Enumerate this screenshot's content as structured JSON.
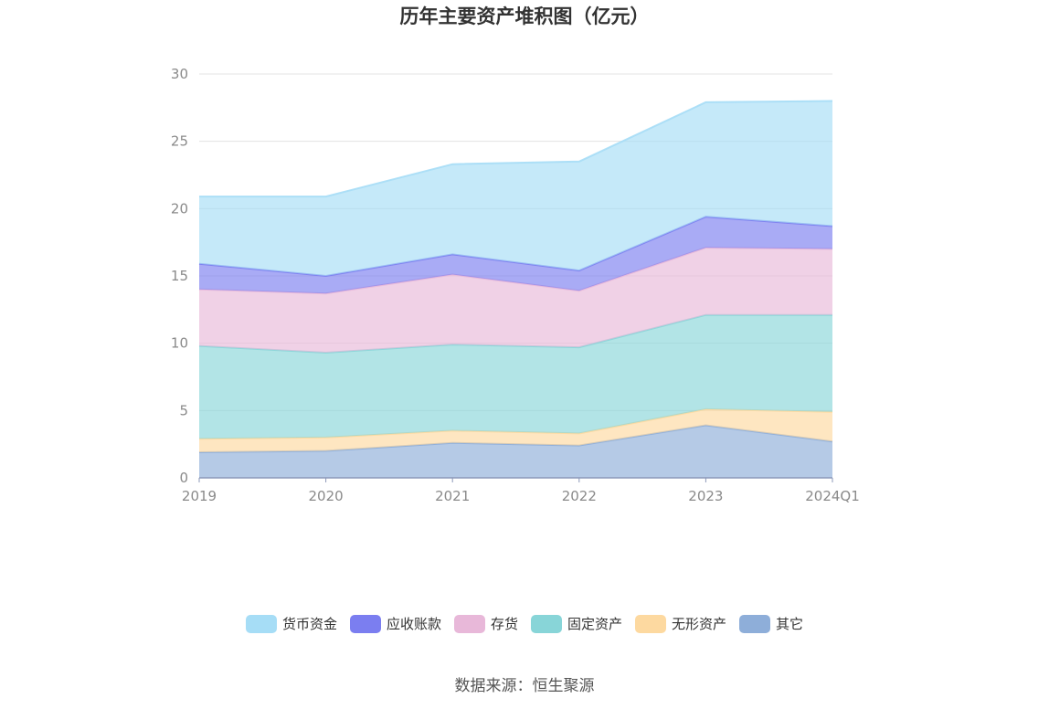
{
  "chart_data": {
    "type": "area",
    "stacked": true,
    "title": "历年主要资产堆积图（亿元）",
    "categories": [
      "2019",
      "2020",
      "2021",
      "2022",
      "2023",
      "2024Q1"
    ],
    "ylim": [
      0,
      30
    ],
    "yticks": [
      0,
      5,
      10,
      15,
      20,
      25,
      30
    ],
    "grid": true,
    "legend_position": "bottom",
    "series": [
      {
        "name": "其它",
        "color": "#8eaed9",
        "values": [
          1.9,
          2.0,
          2.6,
          2.4,
          3.9,
          2.7
        ]
      },
      {
        "name": "无形资产",
        "color": "#fdd9a0",
        "values": [
          1.0,
          1.0,
          0.9,
          0.9,
          1.2,
          2.2
        ]
      },
      {
        "name": "固定资产",
        "color": "#88d5d8",
        "values": [
          6.9,
          6.3,
          6.4,
          6.4,
          7.0,
          7.2
        ]
      },
      {
        "name": "存货",
        "color": "#e8b8d9",
        "values": [
          4.2,
          4.4,
          5.2,
          4.2,
          5.0,
          4.9
        ]
      },
      {
        "name": "应收账款",
        "color": "#7b7ef0",
        "values": [
          1.9,
          1.3,
          1.5,
          1.5,
          2.3,
          1.7
        ]
      },
      {
        "name": "货币资金",
        "color": "#a6ddf6",
        "values": [
          5.0,
          5.9,
          6.7,
          8.1,
          8.5,
          9.3
        ]
      }
    ],
    "legend_order": [
      "货币资金",
      "应收账款",
      "存货",
      "固定资产",
      "无形资产",
      "其它"
    ]
  },
  "source": "数据来源：恒生聚源"
}
